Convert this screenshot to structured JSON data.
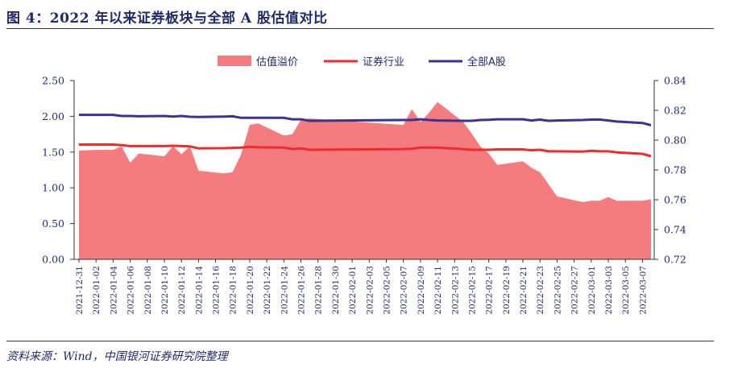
{
  "title": "图 4：2022 年以来证券板块与全部 A 股估值对比",
  "source": "资料来源：Wind，中国银河证券研究院整理",
  "colors": {
    "premium_area": "#f47b7e",
    "securities_line": "#ef2b2b",
    "all_a_line": "#3a3391",
    "text": "#1f2a6b"
  },
  "chart_data": {
    "type": "area",
    "title": "",
    "legend_position": "top",
    "grid": false,
    "left_axis": {
      "ylim": [
        0,
        2.5
      ],
      "ticks": [
        "0.00",
        "0.50",
        "1.00",
        "1.50",
        "2.00",
        "2.50"
      ]
    },
    "right_axis": {
      "ylim": [
        0.72,
        0.84
      ],
      "ticks": [
        "0.72",
        "0.74",
        "0.76",
        "0.78",
        "0.80",
        "0.82",
        "0.84"
      ]
    },
    "x_tick_labels": [
      "2021-12-31",
      "2022-01-02",
      "2022-01-04",
      "2022-01-06",
      "2022-01-08",
      "2022-01-10",
      "2022-01-12",
      "2022-01-14",
      "2022-01-16",
      "2022-01-18",
      "2022-01-20",
      "2022-01-22",
      "2022-01-24",
      "2022-01-26",
      "2022-01-28",
      "2022-01-30",
      "2022-02-01",
      "2022-02-03",
      "2022-02-05",
      "2022-02-07",
      "2022-02-09",
      "2022-02-11",
      "2022-02-13",
      "2022-02-15",
      "2022-02-17",
      "2022-02-19",
      "2022-02-21",
      "2022-02-23",
      "2022-02-25",
      "2022-02-27",
      "2022-03-01",
      "2022-03-03",
      "2022-03-05",
      "2022-03-07"
    ],
    "x": [
      "2021-12-31",
      "2022-01-02",
      "2022-01-04",
      "2022-01-05",
      "2022-01-06",
      "2022-01-07",
      "2022-01-10",
      "2022-01-11",
      "2022-01-12",
      "2022-01-13",
      "2022-01-14",
      "2022-01-17",
      "2022-01-18",
      "2022-01-19",
      "2022-01-20",
      "2022-01-21",
      "2022-01-24",
      "2022-01-25",
      "2022-01-26",
      "2022-01-27",
      "2022-02-07",
      "2022-02-08",
      "2022-02-09",
      "2022-02-10",
      "2022-02-11",
      "2022-02-14",
      "2022-02-15",
      "2022-02-16",
      "2022-02-17",
      "2022-02-18",
      "2022-02-21",
      "2022-02-22",
      "2022-02-23",
      "2022-02-24",
      "2022-02-25",
      "2022-02-28",
      "2022-03-01",
      "2022-03-02",
      "2022-03-03",
      "2022-03-04",
      "2022-03-07",
      "2022-03-08"
    ],
    "series": [
      {
        "name": "估值溢价",
        "axis": "left",
        "style": "area",
        "values": [
          1.52,
          1.53,
          1.53,
          1.58,
          1.35,
          1.48,
          1.44,
          1.58,
          1.47,
          1.58,
          1.24,
          1.2,
          1.22,
          1.47,
          1.88,
          1.9,
          1.73,
          1.75,
          1.95,
          1.97,
          1.88,
          2.1,
          1.92,
          2.05,
          2.2,
          1.92,
          1.76,
          1.58,
          1.48,
          1.32,
          1.37,
          1.28,
          1.22,
          1.05,
          0.88,
          0.8,
          0.82,
          0.82,
          0.87,
          0.82,
          0.82,
          0.84
        ]
      },
      {
        "name": "证券行业",
        "axis": "right",
        "style": "line",
        "values": [
          0.797,
          0.797,
          0.797,
          0.7966,
          0.796,
          0.796,
          0.796,
          0.7962,
          0.796,
          0.7958,
          0.7945,
          0.7946,
          0.7948,
          0.795,
          0.7955,
          0.7952,
          0.795,
          0.794,
          0.7945,
          0.7935,
          0.794,
          0.7942,
          0.795,
          0.795,
          0.795,
          0.794,
          0.7935,
          0.7935,
          0.7935,
          0.7938,
          0.7938,
          0.7932,
          0.7935,
          0.7925,
          0.7925,
          0.7923,
          0.7928,
          0.7925,
          0.7925,
          0.7918,
          0.7908,
          0.7892
        ]
      },
      {
        "name": "全部A股",
        "axis": "right",
        "style": "line",
        "values": [
          0.817,
          0.817,
          0.817,
          0.8162,
          0.8162,
          0.816,
          0.8162,
          0.8158,
          0.8162,
          0.8157,
          0.8155,
          0.8158,
          0.816,
          0.815,
          0.815,
          0.815,
          0.815,
          0.814,
          0.814,
          0.813,
          0.8135,
          0.8135,
          0.814,
          0.8135,
          0.8132,
          0.813,
          0.813,
          0.8135,
          0.8137,
          0.814,
          0.814,
          0.8132,
          0.8138,
          0.813,
          0.8132,
          0.8135,
          0.8138,
          0.8138,
          0.8132,
          0.8125,
          0.8115,
          0.81
        ]
      }
    ]
  }
}
